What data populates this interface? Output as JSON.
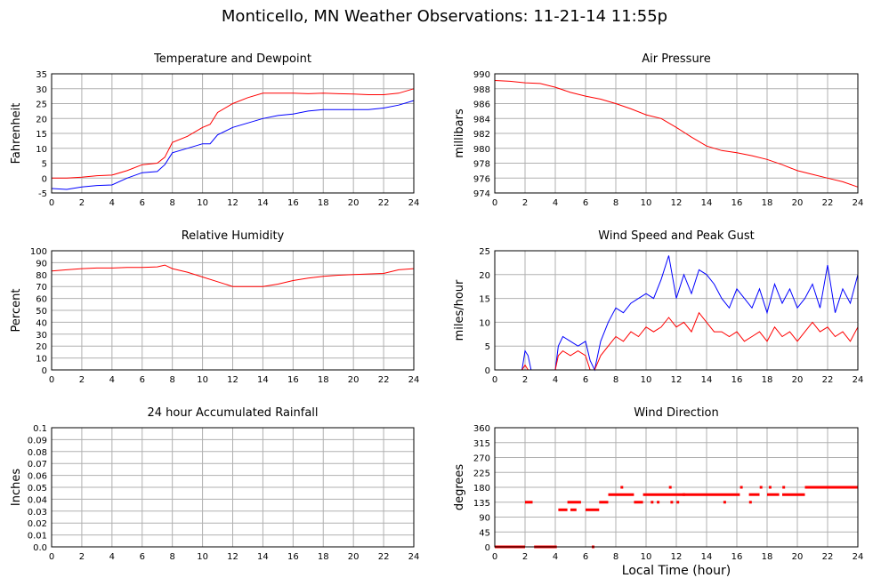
{
  "title": "Monticello, MN Weather Observations: 11-21-14 11:55p",
  "xlabel": "Local Time (hour)",
  "colors": {
    "red": "#ff0000",
    "blue": "#0000ff",
    "grid": "#b0b0b0",
    "frame": "#000000"
  },
  "chart_data": [
    {
      "id": "temp",
      "type": "line",
      "title": "Temperature and Dewpoint",
      "ylabel": "Fahrenheit",
      "xlim": [
        0,
        24
      ],
      "ylim": [
        -5,
        35
      ],
      "xticks": [
        0,
        2,
        4,
        6,
        8,
        10,
        12,
        14,
        16,
        18,
        20,
        22,
        24
      ],
      "yticks": [
        -5,
        0,
        5,
        10,
        15,
        20,
        25,
        30,
        35
      ],
      "x": [
        0,
        1,
        2,
        3,
        4,
        5,
        6,
        7,
        7.5,
        8,
        9,
        10,
        10.5,
        11,
        12,
        13,
        14,
        15,
        16,
        17,
        18,
        19,
        20,
        21,
        22,
        23,
        24
      ],
      "series": [
        {
          "color": "#ff0000",
          "values": [
            0,
            0,
            0.3,
            0.8,
            1,
            2.5,
            4.5,
            5,
            7,
            12,
            14,
            17,
            18,
            22,
            25,
            27,
            28.5,
            28.5,
            28.5,
            28.3,
            28.5,
            28.3,
            28.2,
            28,
            28,
            28.5,
            30
          ]
        },
        {
          "color": "#0000ff",
          "values": [
            -3.5,
            -3.8,
            -3,
            -2.5,
            -2.3,
            0,
            1.8,
            2.2,
            4.5,
            8.5,
            10,
            11.5,
            11.5,
            14.5,
            17,
            18.5,
            20,
            21,
            21.5,
            22.5,
            23,
            23,
            23,
            23,
            23.5,
            24.5,
            26
          ]
        }
      ]
    },
    {
      "id": "pressure",
      "type": "line",
      "title": "Air Pressure",
      "ylabel": "millibars",
      "xlim": [
        0,
        24
      ],
      "ylim": [
        974,
        990
      ],
      "xticks": [
        0,
        2,
        4,
        6,
        8,
        10,
        12,
        14,
        16,
        18,
        20,
        22,
        24
      ],
      "yticks": [
        974,
        976,
        978,
        980,
        982,
        984,
        986,
        988,
        990
      ],
      "x": [
        0,
        1,
        2,
        3,
        4,
        5,
        6,
        7,
        8,
        9,
        10,
        11,
        12,
        13,
        14,
        15,
        16,
        17,
        18,
        19,
        20,
        21,
        22,
        23,
        24
      ],
      "series": [
        {
          "color": "#ff0000",
          "values": [
            989.1,
            989,
            988.8,
            988.7,
            988.2,
            987.5,
            987,
            986.6,
            986,
            985.3,
            984.5,
            984,
            982.8,
            981.5,
            980.3,
            979.7,
            979.4,
            979,
            978.5,
            977.8,
            977,
            976.5,
            976,
            975.5,
            974.8
          ]
        }
      ]
    },
    {
      "id": "humidity",
      "type": "line",
      "title": "Relative Humidity",
      "ylabel": "Percent",
      "xlim": [
        0,
        24
      ],
      "ylim": [
        0,
        100
      ],
      "xticks": [
        0,
        2,
        4,
        6,
        8,
        10,
        12,
        14,
        16,
        18,
        20,
        22,
        24
      ],
      "yticks": [
        0,
        10,
        20,
        30,
        40,
        50,
        60,
        70,
        80,
        90,
        100
      ],
      "x": [
        0,
        1,
        2,
        3,
        4,
        5,
        6,
        7,
        7.5,
        8,
        9,
        10,
        11,
        12,
        13,
        14,
        15,
        16,
        17,
        18,
        19,
        20,
        21,
        22,
        23,
        24
      ],
      "series": [
        {
          "color": "#ff0000",
          "values": [
            83,
            84,
            85,
            85.5,
            85.5,
            86,
            86,
            86.5,
            88,
            85,
            82,
            78,
            74,
            70,
            70,
            70,
            72,
            75,
            77,
            78.5,
            79.5,
            80,
            80.5,
            81,
            84,
            85
          ]
        }
      ]
    },
    {
      "id": "wind",
      "type": "line",
      "title": "Wind Speed and Peak Gust",
      "ylabel": "miles/hour",
      "xlim": [
        0,
        24
      ],
      "ylim": [
        0,
        25
      ],
      "xticks": [
        0,
        2,
        4,
        6,
        8,
        10,
        12,
        14,
        16,
        18,
        20,
        22,
        24
      ],
      "yticks": [
        0,
        5,
        10,
        15,
        20,
        25
      ],
      "x": [
        0,
        1,
        1.8,
        2,
        2.2,
        2.4,
        3,
        4,
        4.2,
        4.5,
        5,
        5.5,
        6,
        6.3,
        6.6,
        7,
        7.5,
        8,
        8.5,
        9,
        9.5,
        10,
        10.5,
        11,
        11.5,
        12,
        12.5,
        13,
        13.5,
        14,
        14.5,
        15,
        15.5,
        16,
        16.5,
        17,
        17.5,
        18,
        18.5,
        19,
        19.5,
        20,
        20.5,
        21,
        21.5,
        22,
        22.5,
        23,
        23.5,
        24
      ],
      "series": [
        {
          "color": "#0000ff",
          "values": [
            0,
            0,
            0,
            4,
            3,
            0,
            0,
            0,
            5,
            7,
            6,
            5,
            6,
            2,
            0,
            6,
            10,
            13,
            12,
            14,
            15,
            16,
            15,
            19,
            24,
            15,
            20,
            16,
            21,
            20,
            18,
            15,
            13,
            17,
            15,
            13,
            17,
            12,
            18,
            14,
            17,
            13,
            15,
            18,
            13,
            22,
            12,
            17,
            14,
            20
          ]
        },
        {
          "color": "#ff0000",
          "values": [
            0,
            0,
            0,
            1,
            0,
            0,
            0,
            0,
            3,
            4,
            3,
            4,
            3,
            0,
            0,
            3,
            5,
            7,
            6,
            8,
            7,
            9,
            8,
            9,
            11,
            9,
            10,
            8,
            12,
            10,
            8,
            8,
            7,
            8,
            6,
            7,
            8,
            6,
            9,
            7,
            8,
            6,
            8,
            10,
            8,
            9,
            7,
            8,
            6,
            9
          ]
        }
      ]
    },
    {
      "id": "rain",
      "type": "line",
      "title": "24 hour Accumulated Rainfall",
      "ylabel": "Inches",
      "xlim": [
        0,
        24
      ],
      "ylim": [
        0,
        0.1
      ],
      "xticks": [
        0,
        2,
        4,
        6,
        8,
        10,
        12,
        14,
        16,
        18,
        20,
        22,
        24
      ],
      "yticks": [
        0.0,
        0.01,
        0.02,
        0.03,
        0.04,
        0.05,
        0.06,
        0.07,
        0.08,
        0.09,
        0.1
      ],
      "ytick_labels": [
        "0.0",
        "0.01",
        "0.02",
        "0.03",
        "0.04",
        "0.05",
        "0.06",
        "0.07",
        "0.08",
        "0.09",
        "0.1"
      ],
      "x": [
        0,
        24
      ],
      "series": [
        {
          "color": "#ff0000",
          "values": [
            0,
            0
          ]
        }
      ]
    },
    {
      "id": "direction",
      "type": "scatter",
      "title": "Wind Direction",
      "ylabel": "degrees",
      "xlim": [
        0,
        24
      ],
      "ylim": [
        0,
        360
      ],
      "xticks": [
        0,
        2,
        4,
        6,
        8,
        10,
        12,
        14,
        16,
        18,
        20,
        22,
        24
      ],
      "yticks": [
        0,
        45,
        90,
        135,
        180,
        225,
        270,
        315,
        360
      ],
      "segments": [
        {
          "x0": 0,
          "x1": 2,
          "y": 0
        },
        {
          "x0": 2,
          "x1": 2.5,
          "y": 135
        },
        {
          "x0": 2.6,
          "x1": 4.1,
          "y": 0
        },
        {
          "x0": 4.2,
          "x1": 4.8,
          "y": 112
        },
        {
          "x0": 4.8,
          "x1": 5.7,
          "y": 135
        },
        {
          "x0": 5.0,
          "x1": 5.4,
          "y": 112
        },
        {
          "x0": 6.0,
          "x1": 6.9,
          "y": 112
        },
        {
          "x0": 6.9,
          "x1": 7.5,
          "y": 135
        },
        {
          "x0": 7.5,
          "x1": 9.2,
          "y": 158
        },
        {
          "x0": 9.2,
          "x1": 9.8,
          "y": 135
        },
        {
          "x0": 9.8,
          "x1": 16.2,
          "y": 158
        },
        {
          "x0": 16.8,
          "x1": 17.5,
          "y": 158
        },
        {
          "x0": 18.0,
          "x1": 18.8,
          "y": 158
        },
        {
          "x0": 19.0,
          "x1": 20.5,
          "y": 158
        },
        {
          "x0": 20.5,
          "x1": 24,
          "y": 180
        }
      ],
      "points": [
        {
          "x": 6.5,
          "y": 0
        },
        {
          "x": 8.4,
          "y": 180
        },
        {
          "x": 11.6,
          "y": 180
        },
        {
          "x": 10.4,
          "y": 135
        },
        {
          "x": 10.8,
          "y": 135
        },
        {
          "x": 11.7,
          "y": 135
        },
        {
          "x": 12.1,
          "y": 135
        },
        {
          "x": 15.2,
          "y": 135
        },
        {
          "x": 16.3,
          "y": 180
        },
        {
          "x": 16.9,
          "y": 135
        },
        {
          "x": 17.6,
          "y": 180
        },
        {
          "x": 18.2,
          "y": 180
        },
        {
          "x": 19.1,
          "y": 180
        },
        {
          "x": 12.5,
          "y": 158
        }
      ]
    }
  ]
}
